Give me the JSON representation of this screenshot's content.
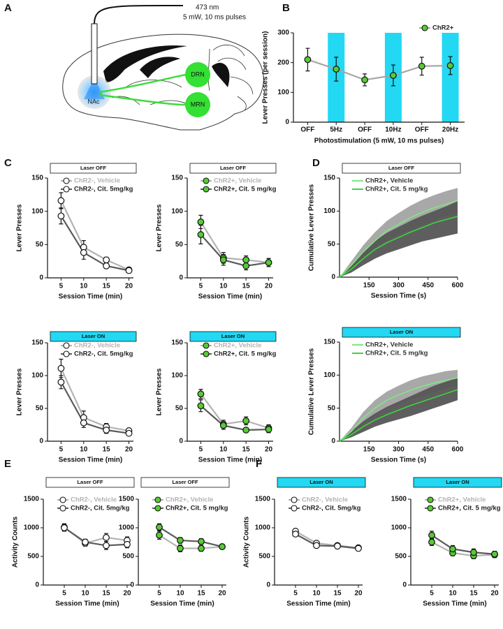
{
  "panels": [
    "A",
    "B",
    "C",
    "D",
    "E",
    "F"
  ],
  "diagram": {
    "wavelength": "473 nm",
    "stimulation": "5 mW, 10 ms pulses",
    "targets": [
      "DRN",
      "MRN"
    ],
    "source": "NAc"
  },
  "chart_data": [
    {
      "type": "line",
      "categories": [
        "OFF",
        "5Hz",
        "OFF",
        "10Hz",
        "OFF",
        "20Hz"
      ],
      "highlight": [
        1,
        3,
        5
      ],
      "highlight_color": "#22d8f2",
      "ylim": [
        0,
        300
      ],
      "yticks": [
        0,
        100,
        200,
        300
      ],
      "y_label": "Lever Presses (per session)",
      "x_label": "Photostimulation (5 mW, 10 ms pulses)",
      "series": [
        {
          "name": "ChR2+",
          "color": "#a6a6a6",
          "marker_color": "#55cc33",
          "values": [
            210,
            178,
            142,
            157,
            188,
            190
          ],
          "errors": [
            38,
            40,
            20,
            35,
            30,
            30
          ]
        }
      ]
    },
    {
      "type": "line",
      "title": "Laser OFF",
      "header_color": "#ffffff",
      "x": [
        5,
        10,
        15,
        20
      ],
      "xlim": [
        2,
        21
      ],
      "xticks": [
        5,
        10,
        15,
        20
      ],
      "ylim": [
        0,
        150
      ],
      "yticks": [
        0,
        50,
        100,
        150
      ],
      "x_label": "Session Time (min)",
      "y_label": "Lever Presses",
      "series": [
        {
          "name": "ChR2-, Vehicle",
          "color": "#b3b3b3",
          "marker_color": "#ffffff",
          "values": [
            116,
            46,
            27,
            12
          ],
          "errors": [
            12,
            10,
            4,
            2
          ]
        },
        {
          "name": "ChR2-, Cit. 5mg/kg",
          "color": "#5a5a5a",
          "marker_color": "#ffffff",
          "values": [
            93,
            38,
            18,
            11
          ],
          "errors": [
            12,
            10,
            4,
            2
          ]
        }
      ]
    },
    {
      "type": "line",
      "title": "Laser OFF",
      "header_color": "#ffffff",
      "x": [
        5,
        10,
        15,
        20
      ],
      "xlim": [
        2,
        21
      ],
      "xticks": [
        5,
        10,
        15,
        20
      ],
      "ylim": [
        0,
        150
      ],
      "yticks": [
        0,
        50,
        100,
        150
      ],
      "x_label": "Session Time (min)",
      "y_label": "Lever Presses",
      "series": [
        {
          "name": "ChR2+, Vehicle",
          "color": "#b3b3b3",
          "marker_color": "#55cc33",
          "values": [
            84,
            30,
            27,
            23
          ],
          "errors": [
            10,
            8,
            6,
            6
          ]
        },
        {
          "name": "ChR2+, Cit. 5 mg/kg",
          "color": "#5a5a5a",
          "marker_color": "#55cc33",
          "values": [
            65,
            27,
            18,
            23
          ],
          "errors": [
            14,
            8,
            6,
            6
          ]
        }
      ]
    },
    {
      "type": "line",
      "title": "Laser ON",
      "header_color": "#22d8f2",
      "x": [
        5,
        10,
        15,
        20
      ],
      "xlim": [
        2,
        21
      ],
      "xticks": [
        5,
        10,
        15,
        20
      ],
      "ylim": [
        0,
        150
      ],
      "yticks": [
        0,
        50,
        100,
        150
      ],
      "x_label": "Session Time (min)",
      "y_label": "Lever Presses",
      "series": [
        {
          "name": "ChR2-, Vehicle",
          "color": "#b3b3b3",
          "marker_color": "#ffffff",
          "values": [
            111,
            36,
            22,
            16
          ],
          "errors": [
            14,
            10,
            5,
            3
          ]
        },
        {
          "name": "ChR2-, Cit. 5mg/kg",
          "color": "#5a5a5a",
          "marker_color": "#ffffff",
          "values": [
            90,
            28,
            17,
            12
          ],
          "errors": [
            10,
            7,
            5,
            3
          ]
        }
      ]
    },
    {
      "type": "line",
      "title": "Laser ON",
      "header_color": "#22d8f2",
      "x": [
        5,
        10,
        15,
        20
      ],
      "xlim": [
        2,
        21
      ],
      "xticks": [
        5,
        10,
        15,
        20
      ],
      "ylim": [
        0,
        150
      ],
      "yticks": [
        0,
        50,
        100,
        150
      ],
      "x_label": "Session Time (min)",
      "y_label": "Lever Presses",
      "series": [
        {
          "name": "ChR2+, Vehicle",
          "color": "#b3b3b3",
          "marker_color": "#55cc33",
          "values": [
            72,
            26,
            31,
            20
          ],
          "errors": [
            7,
            6,
            6,
            5
          ]
        },
        {
          "name": "ChR2+, Cit. 5 mg/kg",
          "color": "#5a5a5a",
          "marker_color": "#55cc33",
          "values": [
            54,
            24,
            17,
            18
          ],
          "errors": [
            9,
            6,
            3,
            5
          ]
        }
      ]
    },
    {
      "type": "area",
      "title": "Laser OFF",
      "header_color": "#ffffff",
      "x": [
        0,
        60,
        120,
        180,
        240,
        300,
        360,
        420,
        480,
        540,
        600
      ],
      "xlim": [
        0,
        600
      ],
      "xticks": [
        150,
        300,
        450,
        600
      ],
      "ylim": [
        0,
        150
      ],
      "yticks": [
        0,
        50,
        100,
        150
      ],
      "x_label": "Session Time (s)",
      "y_label": "Cumulative Lever Presses",
      "series": [
        {
          "name": "ChR2+, Vehicle",
          "color": "#7ee87e",
          "band_color": "#a3a3a3",
          "values": [
            0,
            18,
            38,
            55,
            70,
            80,
            90,
            98,
            105,
            110,
            116
          ],
          "lower": [
            0,
            12,
            28,
            42,
            55,
            64,
            72,
            79,
            86,
            92,
            97
          ],
          "upper": [
            0,
            24,
            48,
            68,
            85,
            97,
            108,
            117,
            124,
            130,
            135
          ]
        },
        {
          "name": "ChR2+, Cit. 5 mg/kg",
          "color": "#3ed43e",
          "band_color": "#555555",
          "values": [
            0,
            12,
            28,
            42,
            52,
            60,
            68,
            75,
            82,
            87,
            92
          ],
          "lower": [
            0,
            7,
            18,
            28,
            36,
            42,
            48,
            54,
            58,
            62,
            66
          ],
          "upper": [
            0,
            18,
            38,
            55,
            67,
            76,
            85,
            93,
            100,
            107,
            115
          ]
        }
      ]
    },
    {
      "type": "area",
      "title": "Laser ON",
      "header_color": "#22d8f2",
      "x": [
        0,
        60,
        120,
        180,
        240,
        300,
        360,
        420,
        480,
        540,
        600
      ],
      "xlim": [
        0,
        600
      ],
      "xticks": [
        150,
        300,
        450,
        600
      ],
      "ylim": [
        0,
        150
      ],
      "yticks": [
        0,
        50,
        100,
        150
      ],
      "x_label": "Session Time (s)",
      "y_label": "Cumulative Lever Presses",
      "series": [
        {
          "name": "ChR2+, Vehicle",
          "color": "#7ee87e",
          "band_color": "#a3a3a3",
          "values": [
            0,
            15,
            35,
            50,
            62,
            70,
            77,
            83,
            88,
            92,
            96
          ],
          "lower": [
            0,
            10,
            26,
            38,
            49,
            56,
            63,
            68,
            74,
            80,
            84
          ],
          "upper": [
            0,
            20,
            44,
            62,
            75,
            84,
            92,
            98,
            102,
            106,
            108
          ]
        },
        {
          "name": "ChR2+, Cit. 5 mg/kg",
          "color": "#3ed43e",
          "band_color": "#555555",
          "values": [
            0,
            10,
            22,
            32,
            40,
            47,
            54,
            60,
            66,
            72,
            78
          ],
          "lower": [
            0,
            6,
            14,
            22,
            28,
            33,
            38,
            44,
            50,
            56,
            62
          ],
          "upper": [
            0,
            15,
            30,
            42,
            52,
            60,
            68,
            76,
            84,
            90,
            96
          ]
        }
      ]
    },
    {
      "type": "line",
      "title": "Laser OFF",
      "header_color": "#ffffff",
      "x": [
        5,
        10,
        15,
        20
      ],
      "xlim": [
        0,
        21
      ],
      "xticks": [
        5,
        10,
        15,
        20
      ],
      "ylim": [
        0,
        1500
      ],
      "yticks": [
        0,
        500,
        1000,
        1500
      ],
      "x_label": "Session Time (min)",
      "y_label": "Activity Counts",
      "series": [
        {
          "name": "ChR2-, Vehicle",
          "color": "#b3b3b3",
          "marker_color": "#ffffff",
          "values": [
            1010,
            730,
            830,
            780
          ],
          "errors": [
            60,
            50,
            70,
            60
          ]
        },
        {
          "name": "ChR2-, Cit. 5mg/kg",
          "color": "#5a5a5a",
          "marker_color": "#ffffff",
          "values": [
            1000,
            750,
            690,
            710
          ],
          "errors": [
            60,
            50,
            70,
            60
          ]
        }
      ]
    },
    {
      "type": "line",
      "title": "Laser OFF",
      "header_color": "#ffffff",
      "x": [
        5,
        10,
        15,
        20
      ],
      "xlim": [
        0,
        21
      ],
      "xticks": [
        5,
        10,
        15,
        20
      ],
      "ylim": [
        0,
        1500
      ],
      "yticks": [
        0,
        500,
        1000,
        1500
      ],
      "x_label": "Session Time (min)",
      "series": [
        {
          "name": "ChR2+, Vehicle",
          "color": "#b3b3b3",
          "marker_color": "#55cc33",
          "values": [
            870,
            640,
            640,
            670
          ],
          "errors": [
            70,
            60,
            50,
            40
          ]
        },
        {
          "name": "ChR2+, Cit. 5 mg/kg",
          "color": "#5a5a5a",
          "marker_color": "#55cc33",
          "values": [
            1010,
            780,
            760,
            670
          ],
          "errors": [
            60,
            50,
            50,
            40
          ]
        }
      ]
    },
    {
      "type": "line",
      "title": "Laser ON",
      "header_color": "#22d8f2",
      "x": [
        5,
        10,
        15,
        20
      ],
      "xlim": [
        0,
        21
      ],
      "xticks": [
        5,
        10,
        15,
        20
      ],
      "ylim": [
        0,
        1500
      ],
      "yticks": [
        0,
        500,
        1000,
        1500
      ],
      "x_label": "Session Time (min)",
      "y_label": "Activity Counts",
      "series": [
        {
          "name": "ChR2-, Vehicle",
          "color": "#b3b3b3",
          "marker_color": "#ffffff",
          "values": [
            940,
            730,
            690,
            650
          ],
          "errors": [
            40,
            40,
            40,
            40
          ]
        },
        {
          "name": "ChR2-, Cit. 5mg/kg",
          "color": "#5a5a5a",
          "marker_color": "#ffffff",
          "values": [
            890,
            690,
            680,
            640
          ],
          "errors": [
            40,
            40,
            40,
            40
          ]
        }
      ]
    },
    {
      "type": "line",
      "title": "Laser ON",
      "header_color": "#22d8f2",
      "x": [
        5,
        10,
        15,
        20
      ],
      "xlim": [
        0,
        21
      ],
      "xticks": [
        5,
        10,
        15,
        20
      ],
      "ylim": [
        0,
        1500
      ],
      "yticks": [
        0,
        500,
        1000,
        1500
      ],
      "x_label": "Session Time (min)",
      "series": [
        {
          "name": "ChR2+, Vehicle",
          "color": "#b3b3b3",
          "marker_color": "#55cc33",
          "values": [
            750,
            560,
            510,
            530
          ],
          "errors": [
            60,
            50,
            50,
            50
          ]
        },
        {
          "name": "ChR2+, Cit. 5 mg/kg",
          "color": "#5a5a5a",
          "marker_color": "#55cc33",
          "values": [
            870,
            630,
            570,
            540
          ],
          "errors": [
            70,
            60,
            60,
            50
          ]
        }
      ]
    }
  ]
}
